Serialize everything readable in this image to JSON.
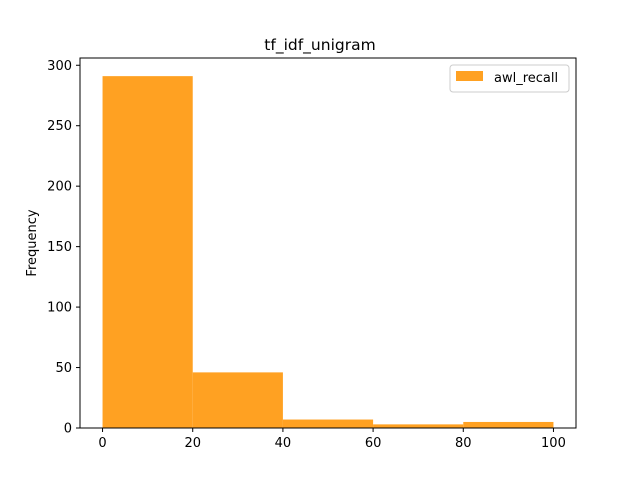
{
  "chart_data": {
    "type": "bar",
    "title": "tf_idf_unigram",
    "xlabel": "",
    "ylabel": "Frequency",
    "bins": [
      [
        0,
        20
      ],
      [
        20,
        40
      ],
      [
        40,
        60
      ],
      [
        60,
        80
      ],
      [
        80,
        100
      ]
    ],
    "series": [
      {
        "name": "awl_recall",
        "values": [
          291,
          46,
          7,
          3,
          5
        ],
        "color": "#ffa122"
      }
    ],
    "xlim": [
      -5,
      105
    ],
    "ylim": [
      0,
      306
    ],
    "xticks": [
      0,
      20,
      40,
      60,
      80,
      100
    ],
    "yticks": [
      0,
      50,
      100,
      150,
      200,
      250,
      300
    ],
    "grid": false,
    "legend_position": "top-right"
  }
}
